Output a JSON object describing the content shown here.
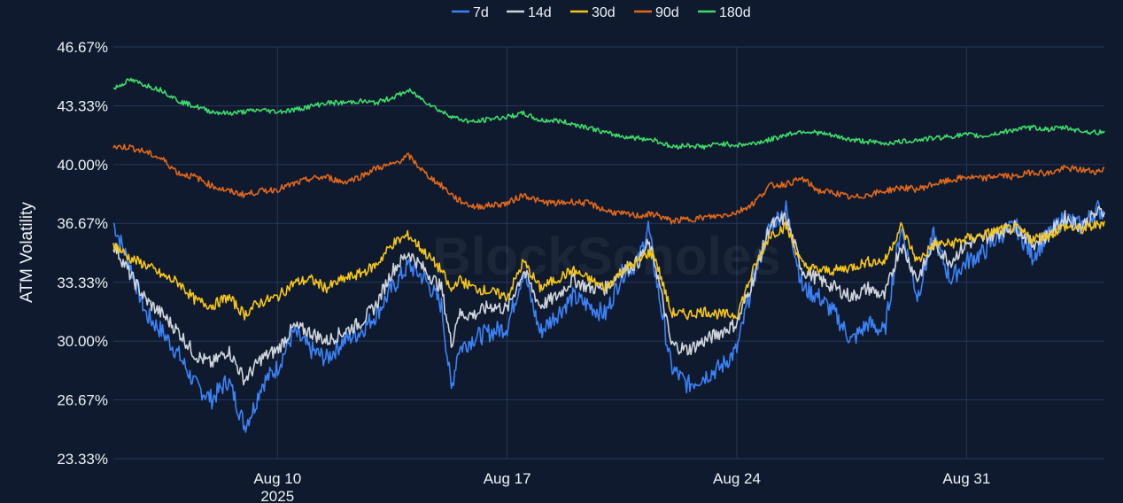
{
  "chart_data": {
    "type": "line",
    "title": "",
    "ylabel": "ATM Volatility",
    "xlabel": "",
    "watermark": "BlockScholes",
    "y_ticks": [
      "46.67%",
      "43.33%",
      "40.00%",
      "36.67%",
      "33.33%",
      "30.00%",
      "26.67%",
      "23.33%"
    ],
    "y_tick_values": [
      46.67,
      43.33,
      40.0,
      36.67,
      33.33,
      30.0,
      26.67,
      23.33
    ],
    "ylim": [
      23.33,
      46.67
    ],
    "x_ticks": [
      {
        "label": "Aug 10",
        "sublabel": "2025",
        "day": 10
      },
      {
        "label": "Aug 17",
        "sublabel": "",
        "day": 17
      },
      {
        "label": "Aug 24",
        "sublabel": "",
        "day": 24
      },
      {
        "label": "Aug 31",
        "sublabel": "",
        "day": 31
      }
    ],
    "xlim_days": [
      5.0,
      35.2
    ],
    "grid": true,
    "legend_position": "top-center",
    "series": [
      {
        "name": "7d",
        "color": "#3b82f6",
        "x": [
          5,
          5.5,
          6,
          6.5,
          7,
          7.5,
          8,
          8.5,
          9,
          9.3,
          9.5,
          10,
          10.5,
          11,
          11.5,
          12,
          12.5,
          13,
          13.5,
          14,
          14.5,
          15,
          15.3,
          15.5,
          16,
          16.5,
          17,
          17.5,
          18,
          18.5,
          19,
          19.5,
          20,
          20.5,
          21,
          21.3,
          21.5,
          22,
          22.5,
          23,
          23.5,
          24,
          24.5,
          25,
          25.5,
          26,
          26.5,
          27,
          27.5,
          28,
          28.5,
          29,
          29.5,
          30,
          30.5,
          31,
          31.5,
          32,
          32.5,
          33,
          33.5,
          34,
          34.5,
          35,
          35.2
        ],
        "y": [
          36.7,
          34.3,
          31.5,
          30.5,
          29.2,
          27.5,
          26.7,
          27.8,
          25.2,
          26.3,
          27.5,
          28.5,
          30.5,
          29.5,
          29.0,
          30.0,
          30.5,
          31.5,
          33.0,
          34.3,
          33.5,
          32.0,
          27.2,
          29.5,
          30.2,
          30.5,
          30.8,
          34.0,
          30.5,
          31.5,
          32.5,
          32.0,
          31.5,
          33.8,
          34.5,
          36.5,
          34.0,
          28.5,
          27.5,
          28.0,
          28.5,
          29.5,
          33.5,
          36.5,
          37.5,
          33.0,
          32.5,
          31.5,
          30.0,
          31.0,
          30.5,
          36.5,
          32.5,
          36.0,
          33.5,
          34.5,
          35.0,
          36.0,
          36.5,
          34.8,
          36.0,
          37.0,
          36.5,
          37.5,
          37.2
        ]
      },
      {
        "name": "14d",
        "color": "#cfd4dc",
        "x": [
          5,
          5.5,
          6,
          6.5,
          7,
          7.5,
          8,
          8.5,
          9,
          9.3,
          9.5,
          10,
          10.5,
          11,
          11.5,
          12,
          12.5,
          13,
          13.5,
          14,
          14.5,
          15,
          15.3,
          15.5,
          16,
          16.5,
          17,
          17.5,
          18,
          18.5,
          19,
          19.5,
          20,
          20.5,
          21,
          21.3,
          21.5,
          22,
          22.5,
          23,
          23.5,
          24,
          24.5,
          25,
          25.5,
          26,
          26.5,
          27,
          27.5,
          28,
          28.5,
          29,
          29.5,
          30,
          30.5,
          31,
          31.5,
          32,
          32.5,
          33,
          33.5,
          34,
          34.5,
          35,
          35.2
        ],
        "y": [
          35.5,
          33.8,
          32.3,
          31.5,
          30.5,
          29.2,
          28.7,
          29.5,
          27.8,
          28.5,
          29.0,
          29.5,
          30.8,
          30.5,
          30.0,
          30.5,
          31.0,
          32.0,
          34.0,
          35.0,
          34.0,
          33.0,
          29.8,
          31.5,
          31.5,
          32.0,
          31.8,
          34.0,
          32.0,
          32.5,
          33.5,
          33.0,
          33.0,
          34.0,
          34.5,
          35.5,
          34.5,
          29.8,
          29.5,
          30.0,
          30.5,
          31.0,
          33.5,
          36.5,
          37.0,
          34.0,
          33.5,
          33.0,
          32.5,
          33.0,
          32.5,
          35.5,
          33.5,
          35.5,
          34.5,
          35.5,
          35.8,
          36.2,
          36.5,
          35.5,
          36.0,
          37.0,
          36.5,
          37.3,
          37.3
        ]
      },
      {
        "name": "30d",
        "color": "#f5c518",
        "x": [
          5,
          5.5,
          6,
          6.5,
          7,
          7.5,
          8,
          8.5,
          9,
          9.3,
          9.5,
          10,
          10.5,
          11,
          11.5,
          12,
          12.5,
          13,
          13.5,
          14,
          14.5,
          15,
          15.3,
          15.5,
          16,
          16.5,
          17,
          17.5,
          18,
          18.5,
          19,
          19.5,
          20,
          20.5,
          21,
          21.3,
          21.5,
          22,
          22.5,
          23,
          23.5,
          24,
          24.5,
          25,
          25.5,
          26,
          26.5,
          27,
          27.5,
          28,
          28.5,
          29,
          29.5,
          30,
          30.5,
          31,
          31.5,
          32,
          32.5,
          33,
          33.5,
          34,
          34.5,
          35,
          35.2
        ],
        "y": [
          35.5,
          34.7,
          34.3,
          33.7,
          33.3,
          32.3,
          32.0,
          32.5,
          31.5,
          32.0,
          32.2,
          32.5,
          33.3,
          33.5,
          33.0,
          33.5,
          33.8,
          34.3,
          35.5,
          36.0,
          35.0,
          34.0,
          32.8,
          33.5,
          33.0,
          32.8,
          32.5,
          34.5,
          33.0,
          33.5,
          34.0,
          33.5,
          33.0,
          34.0,
          34.5,
          35.0,
          34.8,
          31.6,
          31.5,
          31.7,
          31.5,
          31.5,
          34.0,
          36.0,
          36.5,
          34.3,
          34.0,
          34.0,
          34.2,
          34.5,
          34.5,
          36.5,
          34.5,
          35.5,
          35.5,
          35.8,
          36.0,
          36.3,
          36.4,
          35.8,
          36.0,
          36.5,
          36.3,
          36.6,
          36.8
        ]
      },
      {
        "name": "90d",
        "color": "#e0681a",
        "x": [
          5,
          5.5,
          6,
          6.5,
          7,
          7.5,
          8,
          8.5,
          9,
          9.5,
          10,
          10.5,
          11,
          11.5,
          12,
          12.5,
          13,
          13.5,
          14,
          14.5,
          15,
          15.5,
          16,
          16.5,
          17,
          17.5,
          18,
          18.5,
          19,
          19.5,
          20,
          20.5,
          21,
          21.5,
          22,
          22.5,
          23,
          23.5,
          24,
          24.5,
          25,
          25.5,
          26,
          26.5,
          27,
          27.5,
          28,
          28.5,
          29,
          29.5,
          30,
          30.5,
          31,
          31.5,
          32,
          32.5,
          33,
          33.5,
          34,
          34.5,
          35,
          35.2
        ],
        "y": [
          41.0,
          41.0,
          40.7,
          40.3,
          39.5,
          39.3,
          38.8,
          38.5,
          38.3,
          38.5,
          38.6,
          38.9,
          39.2,
          39.3,
          39.0,
          39.3,
          39.8,
          40.0,
          40.5,
          39.5,
          38.8,
          38.0,
          37.6,
          37.7,
          37.8,
          38.3,
          37.9,
          37.8,
          37.9,
          37.8,
          37.4,
          37.2,
          37.1,
          37.2,
          36.8,
          36.9,
          37.0,
          37.1,
          37.3,
          37.8,
          38.8,
          38.9,
          39.2,
          38.5,
          38.4,
          38.1,
          38.3,
          38.5,
          38.7,
          38.6,
          38.9,
          39.1,
          39.3,
          39.2,
          39.4,
          39.3,
          39.6,
          39.5,
          39.8,
          39.7,
          39.6,
          39.8
        ]
      },
      {
        "name": "180d",
        "color": "#3ddc6a",
        "x": [
          5,
          5.5,
          6,
          6.5,
          7,
          7.5,
          8,
          8.5,
          9,
          9.5,
          10,
          10.5,
          11,
          11.5,
          12,
          12.5,
          13,
          13.5,
          14,
          14.5,
          15,
          15.5,
          16,
          16.5,
          17,
          17.5,
          18,
          18.5,
          19,
          19.5,
          20,
          20.5,
          21,
          21.5,
          22,
          22.5,
          23,
          23.5,
          24,
          24.5,
          25,
          25.5,
          26,
          26.5,
          27,
          27.5,
          28,
          28.5,
          29,
          29.5,
          30,
          30.5,
          31,
          31.5,
          32,
          32.5,
          33,
          33.5,
          34,
          34.5,
          35,
          35.2
        ],
        "y": [
          44.3,
          44.8,
          44.5,
          44.2,
          43.6,
          43.3,
          43.0,
          42.9,
          43.0,
          43.1,
          43.0,
          43.1,
          43.3,
          43.5,
          43.5,
          43.6,
          43.5,
          43.8,
          44.2,
          43.6,
          43.0,
          42.6,
          42.4,
          42.6,
          42.7,
          42.9,
          42.5,
          42.5,
          42.3,
          42.1,
          41.8,
          41.6,
          41.5,
          41.4,
          41.0,
          41.1,
          41.0,
          41.2,
          41.1,
          41.2,
          41.4,
          41.7,
          41.9,
          41.8,
          41.6,
          41.4,
          41.3,
          41.2,
          41.3,
          41.4,
          41.5,
          41.6,
          41.7,
          41.6,
          41.8,
          42.0,
          42.1,
          42.0,
          42.1,
          41.9,
          41.8,
          41.9
        ]
      }
    ]
  }
}
